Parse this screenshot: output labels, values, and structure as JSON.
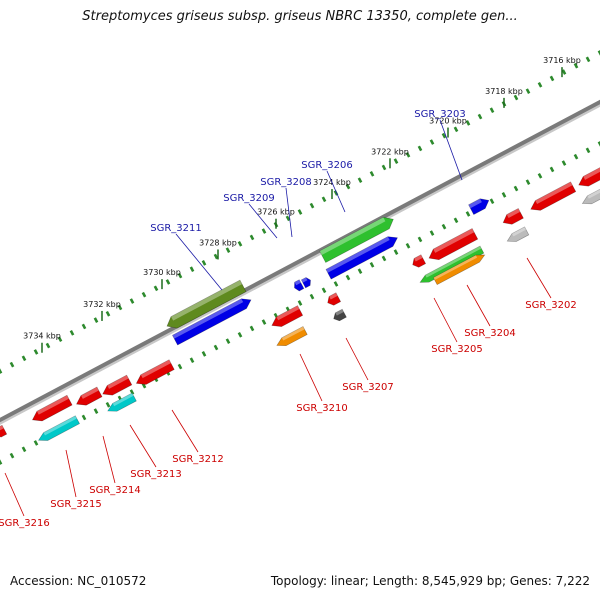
{
  "title": "Streptomyces griseus subsp. griseus NBRC 13350, complete gen...",
  "footer": {
    "accession": "Accession: NC_010572",
    "topology": "Topology: linear; Length: 8,545,929 bp; Genes: 7,222"
  },
  "kbp_ticks": [
    "3716 kbp",
    "3718 kbp",
    "3720 kbp",
    "3722 kbp",
    "3724 kbp",
    "3726 kbp",
    "3728 kbp",
    "3730 kbp",
    "3732 kbp",
    "3734 kbp"
  ],
  "genes_top": [
    {
      "label": "SGR_3203",
      "color": "#0000e6"
    },
    {
      "label": "SGR_3206",
      "color": "#2ec02e"
    },
    {
      "label": "SGR_3208",
      "color": "#0000e6"
    },
    {
      "label": "SGR_3209",
      "color": "#0000e6"
    },
    {
      "label": "SGR_3211",
      "color": "#5f8a1e"
    }
  ],
  "genes_bottom": [
    {
      "label": "SGR_3202",
      "color": "#e00000"
    },
    {
      "label": "SGR_3204",
      "color": "#f08c00"
    },
    {
      "label": "SGR_3205",
      "color": "#e00000"
    },
    {
      "label": "SGR_3207",
      "color": "#e00000"
    },
    {
      "label": "SGR_3210",
      "color": "#e00000"
    },
    {
      "label": "SGR_3212",
      "color": "#e00000"
    },
    {
      "label": "SGR_3213",
      "color": "#e00000"
    },
    {
      "label": "SGR_3214",
      "color": "#e00000"
    },
    {
      "label": "SGR_3215",
      "color": "#e00000"
    },
    {
      "label": "SGR_3216",
      "color": "#e00000"
    }
  ],
  "colors": {
    "label_top": "#1a1aa6",
    "label_bottom": "#cc0000",
    "backbone": "#7a7a7a"
  }
}
